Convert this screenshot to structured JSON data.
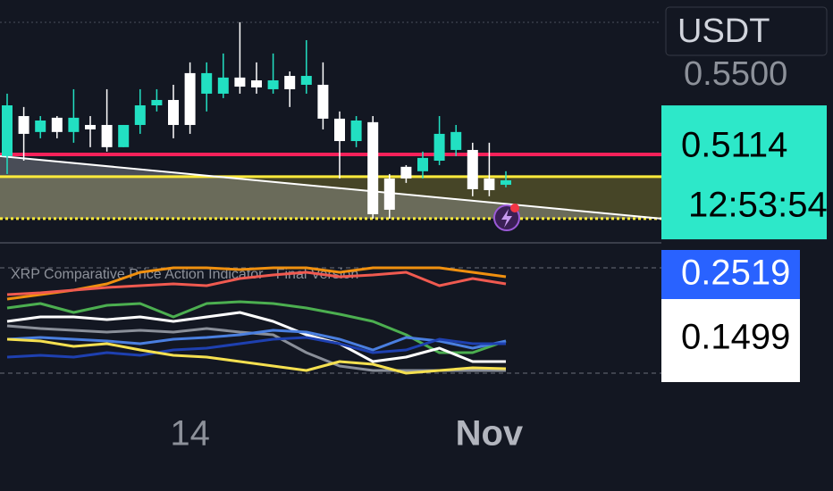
{
  "header": {
    "currency": "USDT"
  },
  "chart_data": [
    {
      "type": "candlestick",
      "categories": [
        null,
        null,
        null,
        null,
        null,
        null,
        null,
        null,
        null,
        null,
        null,
        "14",
        null,
        null,
        null,
        null,
        null,
        null,
        null,
        null,
        null,
        null,
        null,
        null,
        null,
        null,
        null,
        null,
        null,
        "Nov",
        null
      ],
      "open": [
        0.5067,
        0.5283,
        0.5197,
        0.5274,
        0.5197,
        0.5235,
        0.5235,
        0.5115,
        0.5235,
        0.5341,
        0.537,
        0.5515,
        0.5404,
        0.5404,
        0.5491,
        0.5476,
        0.5428,
        0.55,
        0.5452,
        0.5452,
        0.5269,
        0.5148,
        0.525,
        0.4946,
        0.5009,
        0.4985,
        0.5042,
        0.51,
        0.51,
        0.4946,
        0.4912
      ],
      "high": [
        0.5404,
        0.5332,
        0.5283,
        0.5283,
        0.5428,
        0.5283,
        0.5428,
        0.5235,
        0.5428,
        0.5428,
        0.5452,
        0.5573,
        0.5573,
        0.5621,
        0.579,
        0.5573,
        0.5621,
        0.5524,
        0.5693,
        0.5573,
        0.5308,
        0.5283,
        0.5283,
        0.497,
        0.5018,
        0.5091,
        0.5283,
        0.5235,
        0.5139,
        0.5139,
        0.4985
      ],
      "low": [
        0.497,
        0.5042,
        0.5163,
        0.5163,
        0.5139,
        0.5115,
        0.5091,
        0.5115,
        0.5187,
        0.5308,
        0.5163,
        0.5187,
        0.5308,
        0.538,
        0.5404,
        0.5404,
        0.5404,
        0.5332,
        0.5404,
        0.5211,
        0.4946,
        0.5115,
        0.4729,
        0.4729,
        0.4922,
        0.4946,
        0.5018,
        0.5067,
        0.485,
        0.485,
        0.4898
      ],
      "close": [
        0.5341,
        0.5187,
        0.5259,
        0.5197,
        0.5274,
        0.5211,
        0.5115,
        0.5235,
        0.5341,
        0.537,
        0.5235,
        0.5235,
        0.5515,
        0.5491,
        0.5442,
        0.5438,
        0.5476,
        0.5428,
        0.55,
        0.5269,
        0.5148,
        0.5259,
        0.4753,
        0.4777,
        0.4946,
        0.5057,
        0.5187,
        0.5197,
        0.4888,
        0.4883,
        0.4936
      ],
      "up_color": "#22e0c2",
      "down_color": "#ffffff",
      "ylim": [
        0.4608,
        0.591
      ],
      "yticks": [
        {
          "value": 0.55,
          "label": "0.5500"
        }
      ],
      "levels": [
        {
          "value": 0.5076,
          "color": "#f7215a"
        },
        {
          "value": 0.4956,
          "color": "#ffeb3b"
        },
        {
          "value": 0.4729,
          "color": "#ffeb3b"
        }
      ],
      "trend_line": {
        "values": [
          0.5067,
          0.4729
        ],
        "color": "#ffffff"
      },
      "last_price": 0.5114,
      "countdown": "12:53:54",
      "last_price_color": "#2de8c9"
    },
    {
      "type": "line",
      "title": "XRP Comparative Price Action Indicator - Final Version",
      "x": [
        0,
        2,
        4,
        6,
        8,
        10,
        12,
        14,
        16,
        18,
        20,
        22,
        24,
        26,
        28,
        30
      ],
      "ylim": [
        0,
        130
      ],
      "series": [
        {
          "color": "#f0900f",
          "values": [
            90,
            95,
            100,
            107,
            120,
            125,
            125,
            123,
            125,
            125,
            120,
            125,
            125,
            125,
            120,
            115
          ]
        },
        {
          "color": "#f05a50",
          "values": [
            95,
            97,
            100,
            103,
            105,
            107,
            105,
            113,
            117,
            120,
            115,
            117,
            120,
            105,
            113,
            107
          ]
        },
        {
          "color": "#4caf50",
          "values": [
            80,
            85,
            75,
            83,
            85,
            70,
            85,
            87,
            85,
            80,
            73,
            65,
            50,
            30,
            30,
            43
          ]
        },
        {
          "color": "#ffffff",
          "values": [
            65,
            70,
            70,
            67,
            70,
            65,
            70,
            75,
            65,
            50,
            40,
            20,
            25,
            35,
            20,
            20
          ]
        },
        {
          "color": "#8a8f99",
          "values": [
            60,
            57,
            55,
            53,
            55,
            53,
            57,
            53,
            50,
            30,
            15,
            10,
            10,
            10,
            10,
            10
          ]
        },
        {
          "color": "#4a7fe0",
          "values": [
            45,
            47,
            45,
            43,
            40,
            45,
            47,
            50,
            55,
            53,
            45,
            33,
            47,
            43,
            35,
            43
          ]
        },
        {
          "color": "#1e40b0",
          "values": [
            25,
            27,
            25,
            30,
            27,
            33,
            35,
            40,
            45,
            47,
            40,
            30,
            33,
            45,
            40,
            40
          ]
        },
        {
          "color": "#f5e050",
          "values": [
            45,
            43,
            37,
            40,
            33,
            27,
            25,
            20,
            15,
            10,
            20,
            17,
            7,
            10,
            13,
            12
          ]
        }
      ],
      "scale_labels": [
        {
          "value": 0.2519,
          "color": "#2962ff",
          "text_color": "#ffffff"
        },
        {
          "value": 0.1499,
          "color": "#ffffff",
          "text_color": "#000000"
        }
      ]
    }
  ]
}
